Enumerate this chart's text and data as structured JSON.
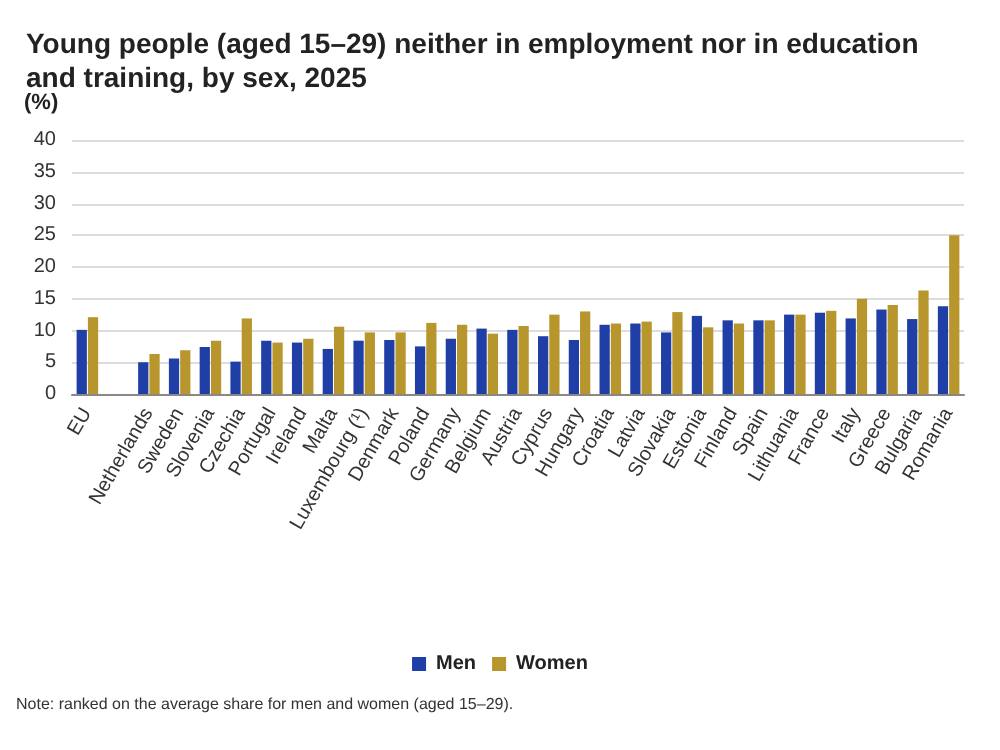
{
  "chart_data": {
    "type": "bar",
    "title": "Young people (aged 15–29) neither in employment nor in education and training, by sex, 2025",
    "ylabel": "(%)",
    "categories": [
      "EU",
      null,
      "Netherlands",
      "Sweden",
      "Slovenia",
      "Czechia",
      "Portugal",
      "Ireland",
      "Malta",
      "Luxembourg (¹)",
      "Denmark",
      "Poland",
      "Germany",
      "Belgium",
      "Austria",
      "Cyprus",
      "Hungary",
      "Croatia",
      "Latvia",
      "Slovakia",
      "Estonia",
      "Finland",
      "Spain",
      "Lithuania",
      "France",
      "Italy",
      "Greece",
      "Bulgaria",
      "Romania"
    ],
    "series": [
      {
        "name": "Men",
        "color": "#1f3ea6",
        "values": [
          10.1,
          null,
          5.0,
          5.6,
          7.4,
          5.1,
          8.4,
          8.1,
          7.1,
          8.4,
          8.5,
          7.5,
          8.7,
          10.3,
          10.1,
          9.1,
          8.5,
          10.9,
          11.1,
          9.7,
          12.3,
          11.6,
          11.6,
          12.5,
          12.8,
          11.9,
          13.3,
          11.8,
          13.8
        ]
      },
      {
        "name": "Women",
        "color": "#b8962e",
        "values": [
          12.1,
          null,
          6.3,
          6.9,
          8.4,
          11.9,
          8.1,
          8.7,
          10.6,
          9.7,
          9.7,
          11.2,
          10.9,
          9.5,
          10.7,
          12.5,
          13.0,
          11.1,
          11.4,
          12.9,
          10.5,
          11.1,
          11.6,
          12.5,
          13.1,
          15.0,
          14.0,
          16.3,
          25.0
        ]
      }
    ],
    "ylim": [
      0,
      40
    ],
    "yticks": [
      0,
      5,
      10,
      15,
      20,
      25,
      30,
      35,
      40
    ],
    "grid": "y",
    "legend": "bottom",
    "annotations": [
      "Note: ranked on the average share for men and women (aged 15–29)."
    ]
  }
}
